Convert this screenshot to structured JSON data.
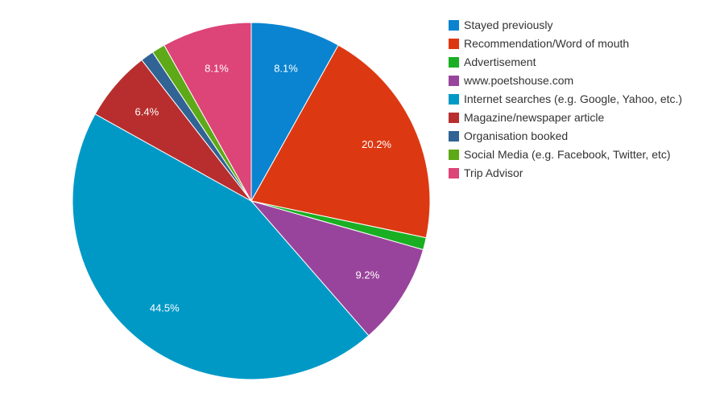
{
  "chart_data": {
    "type": "pie",
    "title": "",
    "legend_position": "right",
    "start_angle_deg": 0,
    "direction": "clockwise",
    "slices": [
      {
        "label": "Stayed previously",
        "value": 8.1,
        "data_label": "8.1%",
        "color": "#0a84d0"
      },
      {
        "label": "Recommendation/Word of mouth",
        "value": 20.2,
        "data_label": "20.2%",
        "color": "#dc3912"
      },
      {
        "label": "Advertisement",
        "value": 1.1,
        "data_label": "",
        "color": "#1aaf23"
      },
      {
        "label": "www.poetshouse.com",
        "value": 9.2,
        "data_label": "9.2%",
        "color": "#99449c"
      },
      {
        "label": "Internet searches (e.g. Google, Yahoo, etc.)",
        "value": 44.5,
        "data_label": "44.5%",
        "color": "#0099c6"
      },
      {
        "label": "Magazine/newspaper article",
        "value": 6.4,
        "data_label": "6.4%",
        "color": "#b82e2e"
      },
      {
        "label": "Organisation booked",
        "value": 1.2,
        "data_label": "",
        "color": "#316395"
      },
      {
        "label": "Social Media (e.g. Facebook, Twitter, etc)",
        "value": 1.2,
        "data_label": "",
        "color": "#5ea917"
      },
      {
        "label": "Trip Advisor",
        "value": 8.1,
        "data_label": "8.1%",
        "color": "#dd4477"
      }
    ]
  }
}
